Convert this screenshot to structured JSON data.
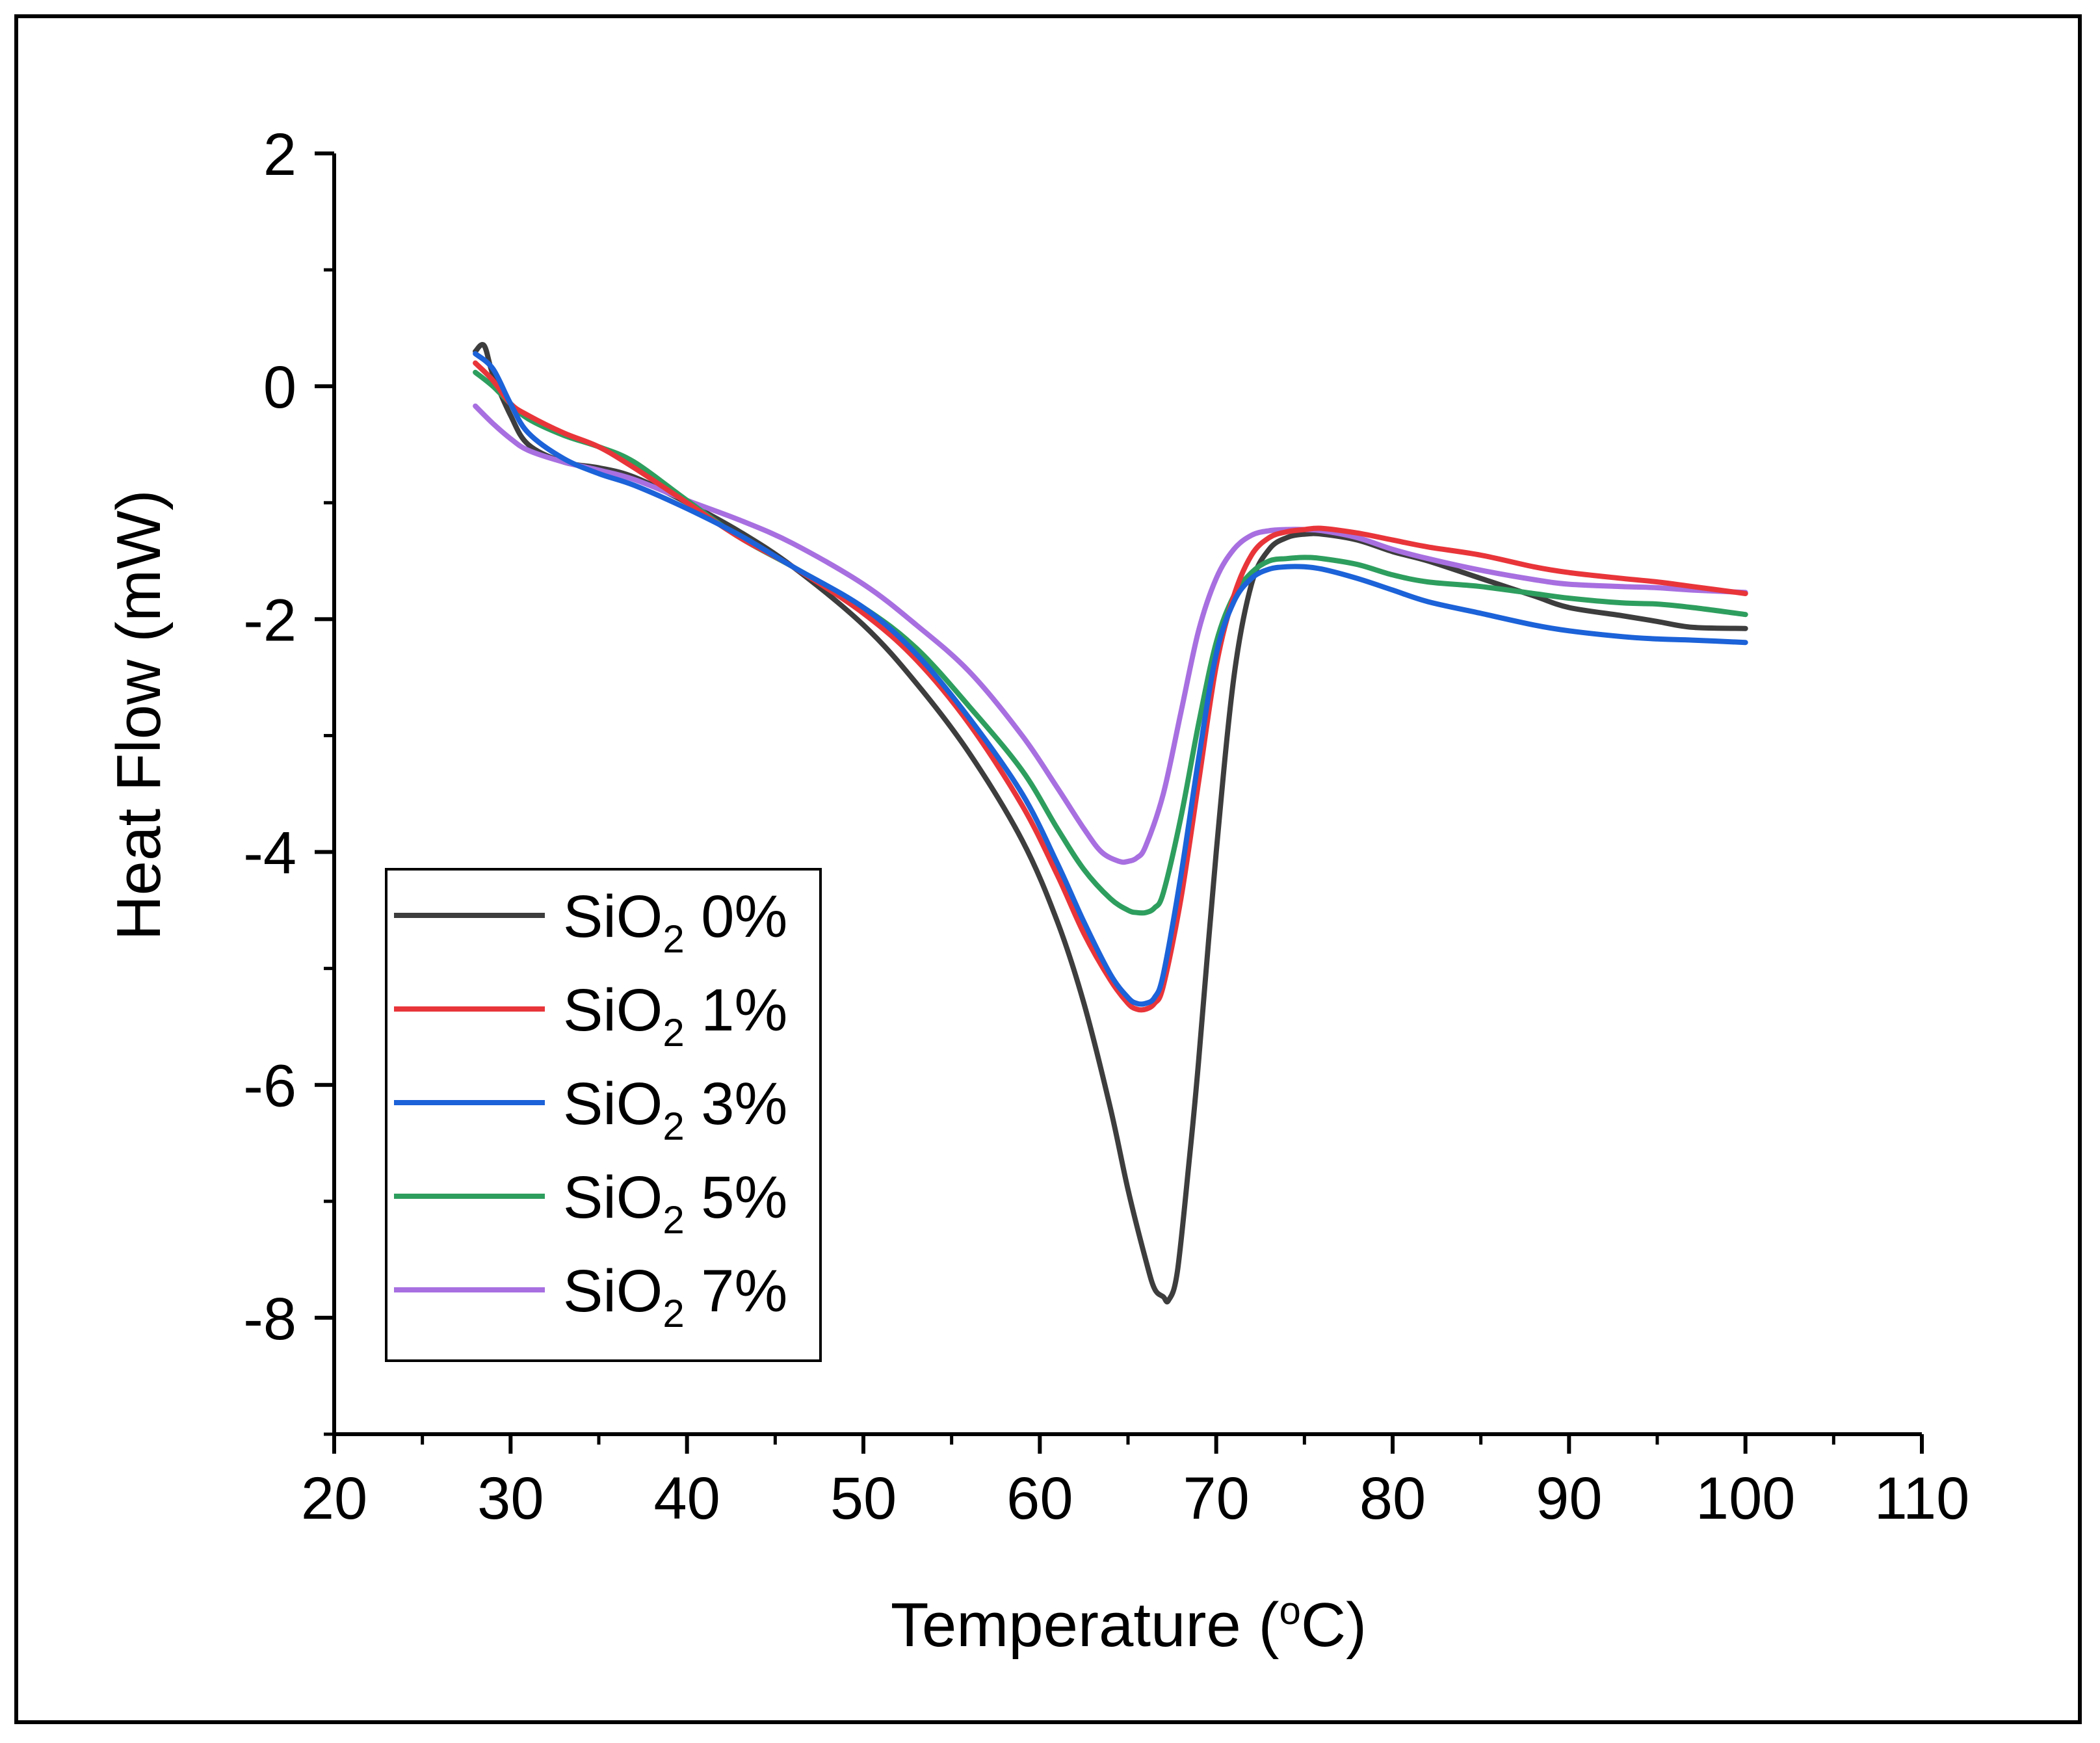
{
  "chart_data": {
    "type": "line",
    "title": "",
    "xlabel": "Temperature (°C)",
    "ylabel": "Heat Flow (mW)",
    "xlim": [
      20,
      110
    ],
    "ylim": [
      -9,
      2
    ],
    "xticks": [
      20,
      30,
      40,
      50,
      60,
      70,
      80,
      90,
      100,
      110
    ],
    "yticks": [
      2,
      0,
      -2,
      -4,
      -6,
      -8
    ],
    "xtick_labels": [
      "20",
      "30",
      "40",
      "50",
      "60",
      "70",
      "80",
      "90",
      "100",
      "110"
    ],
    "ytick_labels": [
      "2",
      "0",
      "-2",
      "-4",
      "-6",
      "-8"
    ],
    "grid": false,
    "legend_position": "bottom-left",
    "series": [
      {
        "name": "SiO2 0%",
        "label_main": "SiO",
        "label_sub": "2",
        "label_tail": " 0%",
        "color": "#3d3d3d",
        "x": [
          28,
          28.5,
          29,
          30,
          31,
          33,
          35,
          37,
          40,
          43,
          46,
          50,
          53,
          56,
          59,
          61,
          62.5,
          64,
          65,
          66,
          66.5,
          67,
          67.3,
          67.8,
          68.5,
          69,
          70,
          71,
          72,
          73,
          74,
          75,
          76,
          78,
          80,
          82,
          85,
          88,
          90,
          93,
          95,
          97,
          100
        ],
        "y": [
          0.3,
          0.35,
          0.1,
          -0.25,
          -0.5,
          -0.65,
          -0.7,
          -0.78,
          -1.0,
          -1.25,
          -1.55,
          -2.05,
          -2.55,
          -3.15,
          -3.9,
          -4.6,
          -5.3,
          -6.2,
          -6.9,
          -7.5,
          -7.75,
          -7.82,
          -7.85,
          -7.6,
          -6.6,
          -5.8,
          -4.0,
          -2.5,
          -1.7,
          -1.4,
          -1.3,
          -1.27,
          -1.27,
          -1.32,
          -1.42,
          -1.5,
          -1.65,
          -1.8,
          -1.9,
          -1.97,
          -2.02,
          -2.07,
          -2.08
        ]
      },
      {
        "name": "SiO2 1%",
        "label_main": "SiO",
        "label_sub": "2",
        "label_tail": " 1%",
        "color": "#e8353a",
        "x": [
          28,
          29,
          30,
          31,
          33,
          35,
          37,
          40,
          43,
          46,
          50,
          53,
          56,
          59,
          61,
          62.5,
          64,
          65,
          65.5,
          66,
          66.5,
          67,
          68,
          69,
          70,
          71,
          72,
          73,
          74,
          75,
          76,
          78,
          80,
          82,
          85,
          88,
          90,
          93,
          95,
          97,
          100
        ],
        "y": [
          0.2,
          0.05,
          -0.15,
          -0.25,
          -0.4,
          -0.52,
          -0.7,
          -1.0,
          -1.3,
          -1.55,
          -1.95,
          -2.35,
          -2.9,
          -3.6,
          -4.2,
          -4.7,
          -5.1,
          -5.3,
          -5.35,
          -5.35,
          -5.3,
          -5.15,
          -4.4,
          -3.4,
          -2.4,
          -1.8,
          -1.45,
          -1.3,
          -1.25,
          -1.23,
          -1.22,
          -1.26,
          -1.32,
          -1.38,
          -1.45,
          -1.55,
          -1.6,
          -1.65,
          -1.68,
          -1.72,
          -1.78
        ]
      },
      {
        "name": "SiO2 3%",
        "label_main": "SiO",
        "label_sub": "2",
        "label_tail": " 3%",
        "color": "#1c62d8",
        "x": [
          28,
          29,
          30,
          31,
          33,
          35,
          37,
          40,
          43,
          46,
          50,
          53,
          56,
          59,
          61,
          62.5,
          64,
          65,
          65.5,
          66,
          66.5,
          67,
          68,
          69,
          70,
          71,
          72,
          73,
          74,
          75,
          76,
          78,
          80,
          82,
          85,
          88,
          90,
          93,
          95,
          97,
          100
        ],
        "y": [
          0.28,
          0.15,
          -0.15,
          -0.4,
          -0.62,
          -0.75,
          -0.85,
          -1.05,
          -1.28,
          -1.55,
          -1.9,
          -2.3,
          -2.85,
          -3.5,
          -4.1,
          -4.6,
          -5.05,
          -5.25,
          -5.3,
          -5.3,
          -5.25,
          -5.05,
          -4.2,
          -3.2,
          -2.3,
          -1.85,
          -1.65,
          -1.57,
          -1.55,
          -1.55,
          -1.57,
          -1.65,
          -1.75,
          -1.85,
          -1.95,
          -2.05,
          -2.1,
          -2.15,
          -2.17,
          -2.18,
          -2.2
        ]
      },
      {
        "name": "SiO2 5%",
        "label_main": "SiO",
        "label_sub": "2",
        "label_tail": " 5%",
        "color": "#2e9e5e",
        "x": [
          28,
          29,
          30,
          31,
          33,
          35,
          37,
          40,
          43,
          46,
          50,
          53,
          56,
          59,
          61,
          62.5,
          64,
          65,
          65.5,
          66,
          66.5,
          67,
          68,
          69,
          70,
          71,
          72,
          73,
          74,
          75,
          76,
          78,
          80,
          82,
          85,
          88,
          90,
          93,
          95,
          97,
          100
        ],
        "y": [
          0.12,
          0.0,
          -0.15,
          -0.28,
          -0.42,
          -0.52,
          -0.65,
          -0.98,
          -1.3,
          -1.55,
          -1.9,
          -2.25,
          -2.75,
          -3.3,
          -3.8,
          -4.15,
          -4.4,
          -4.5,
          -4.52,
          -4.52,
          -4.48,
          -4.35,
          -3.7,
          -2.9,
          -2.2,
          -1.8,
          -1.6,
          -1.5,
          -1.48,
          -1.47,
          -1.48,
          -1.53,
          -1.62,
          -1.68,
          -1.72,
          -1.78,
          -1.82,
          -1.86,
          -1.87,
          -1.9,
          -1.96
        ]
      },
      {
        "name": "SiO2 7%",
        "label_main": "SiO",
        "label_sub": "2",
        "label_tail": " 7%",
        "color": "#a76fe0",
        "x": [
          28,
          29,
          30,
          31,
          33,
          35,
          37,
          40,
          43,
          46,
          50,
          53,
          56,
          59,
          61,
          62.5,
          63.5,
          64.5,
          65,
          65.5,
          66,
          67,
          68,
          69,
          70,
          71,
          72,
          73,
          74,
          75,
          76,
          78,
          80,
          82,
          85,
          88,
          90,
          93,
          95,
          97,
          100
        ],
        "y": [
          -0.17,
          -0.32,
          -0.45,
          -0.55,
          -0.65,
          -0.72,
          -0.8,
          -0.98,
          -1.15,
          -1.35,
          -1.7,
          -2.05,
          -2.45,
          -3.0,
          -3.45,
          -3.8,
          -4.0,
          -4.08,
          -4.08,
          -4.05,
          -3.95,
          -3.5,
          -2.8,
          -2.1,
          -1.65,
          -1.4,
          -1.28,
          -1.24,
          -1.23,
          -1.23,
          -1.24,
          -1.3,
          -1.4,
          -1.48,
          -1.58,
          -1.66,
          -1.7,
          -1.72,
          -1.73,
          -1.75,
          -1.77
        ]
      }
    ]
  }
}
